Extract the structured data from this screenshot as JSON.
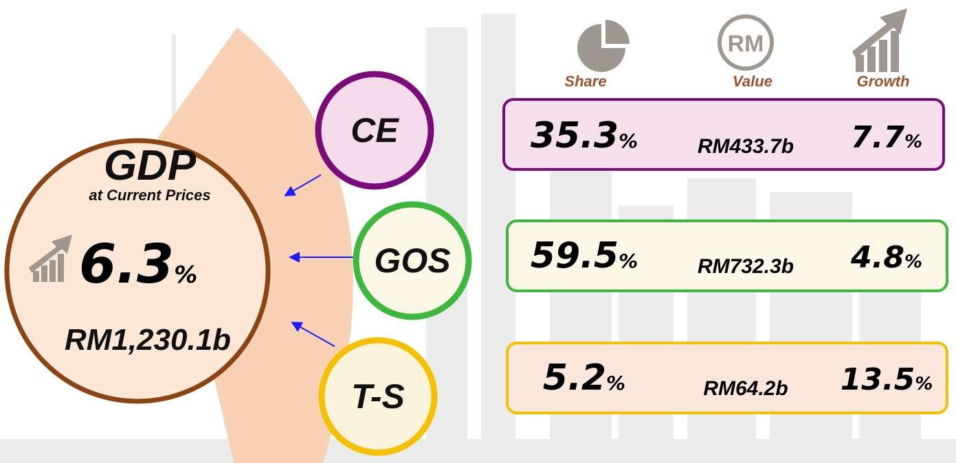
{
  "gdp": {
    "title": "GDP",
    "subtitle": "at Current Prices",
    "growth": {
      "number": "6.3",
      "unit": "%"
    },
    "value": "RM1,230.1b"
  },
  "headers": {
    "share": "Share",
    "value": "Value",
    "growth": "Growth",
    "value_icon": "RM"
  },
  "components": [
    {
      "label": "CE",
      "share": {
        "number": "35.3",
        "unit": "%"
      },
      "value": "RM433.7b",
      "growth": {
        "number": "7.7",
        "unit": "%"
      }
    },
    {
      "label": "GOS",
      "share": {
        "number": "59.5",
        "unit": "%"
      },
      "value": "RM732.3b",
      "growth": {
        "number": "4.8",
        "unit": "%"
      }
    },
    {
      "label": "T-S",
      "share": {
        "number": "5.2",
        "unit": "%"
      },
      "value": "RM64.2b",
      "growth": {
        "number": "13.5",
        "unit": "%"
      }
    }
  ]
}
